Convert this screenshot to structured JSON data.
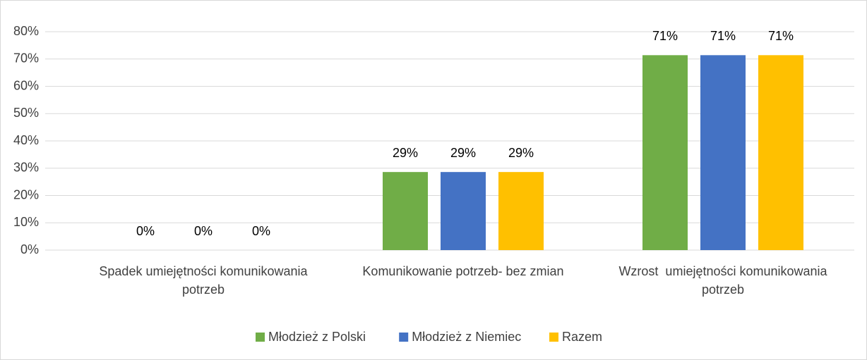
{
  "chart_data": {
    "type": "bar",
    "categories": [
      "Spadek umiejętności komunikowania potrzeb",
      "Komunikowanie potrzeb- bez zmian",
      "Wzrost  umiejętności komunikowania potrzeb"
    ],
    "series": [
      {
        "name": "Młodzież z Polski",
        "color": "#70ad47",
        "values": [
          0,
          28.6,
          71.4
        ],
        "value_labels": [
          "0%",
          "29%",
          "71%"
        ]
      },
      {
        "name": "Młodzież z Niemiec",
        "color": "#4472c4",
        "values": [
          0,
          28.6,
          71.4
        ],
        "value_labels": [
          "0%",
          "29%",
          "71%"
        ]
      },
      {
        "name": "Razem",
        "color": "#ffc000",
        "values": [
          0,
          28.6,
          71.4
        ],
        "value_labels": [
          "0%",
          "29%",
          "71%"
        ]
      }
    ],
    "ylim": [
      0,
      80
    ],
    "yticks": [
      {
        "value": 0,
        "label": "0%"
      },
      {
        "value": 10,
        "label": "10%"
      },
      {
        "value": 20,
        "label": "20%"
      },
      {
        "value": 30,
        "label": "30%"
      },
      {
        "value": 40,
        "label": "40%"
      },
      {
        "value": 50,
        "label": "50%"
      },
      {
        "value": 60,
        "label": "60%"
      },
      {
        "value": 70,
        "label": "70%"
      },
      {
        "value": 80,
        "label": "80%"
      }
    ],
    "grid": true,
    "legend": "bottom"
  }
}
